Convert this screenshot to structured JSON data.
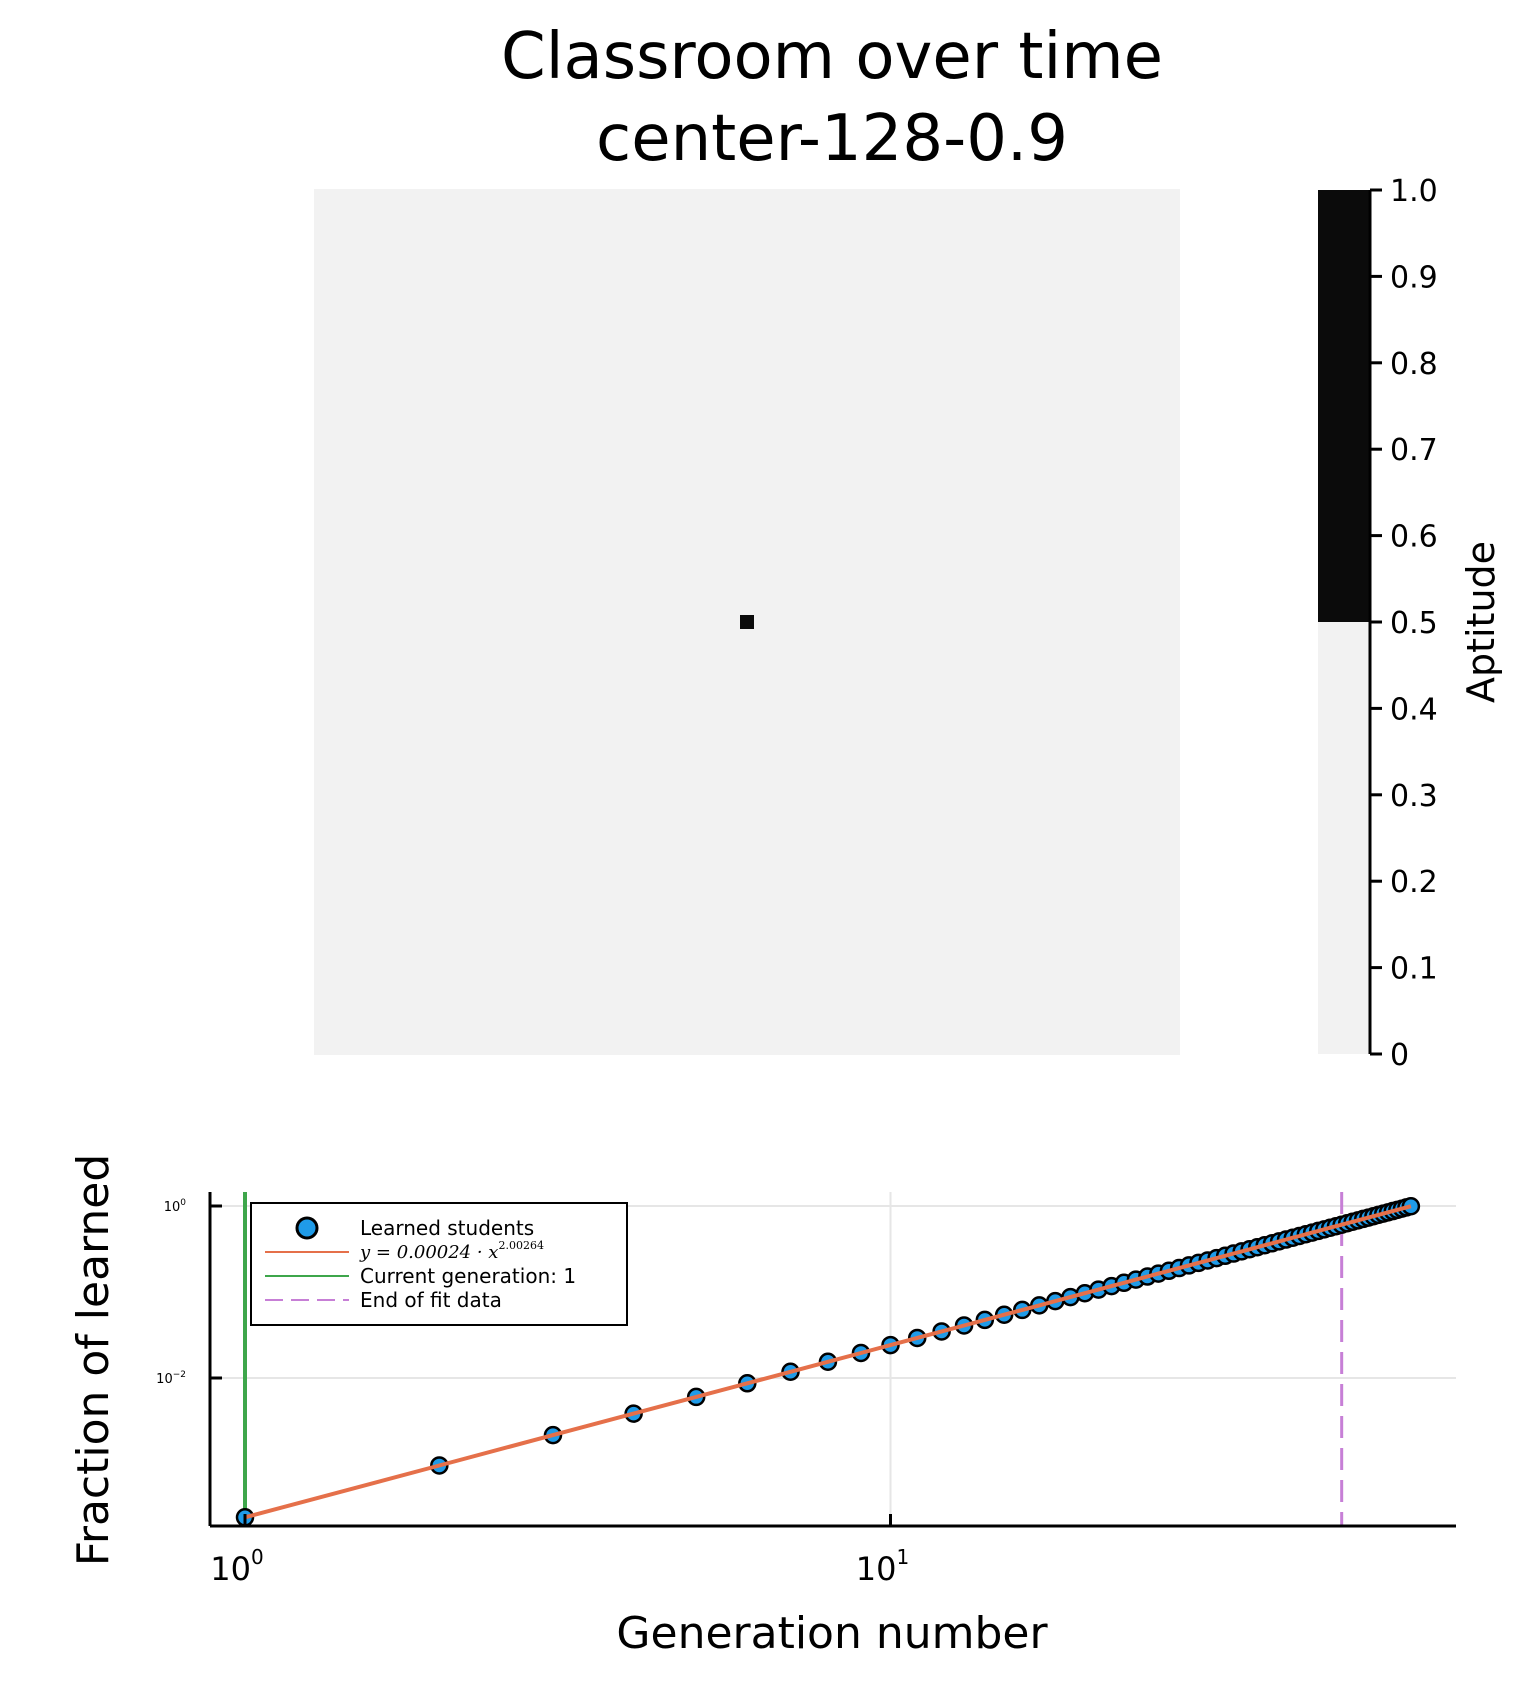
{
  "figure": {
    "title_line1": "Classroom over time",
    "title_line2": "center-128-0.9"
  },
  "heatmap": {
    "background_color": "#f2f2f2",
    "learned_color": "#0b0b0b",
    "grid_size": 128,
    "learned_cell_count": 1
  },
  "colorbar": {
    "label": "Aptitude",
    "ticks": [
      "0",
      "0.1",
      "0.2",
      "0.3",
      "0.4",
      "0.5",
      "0.6",
      "0.7",
      "0.8",
      "0.9",
      "1.0"
    ],
    "low_color": "#f2f2f2",
    "high_color": "#0b0b0b",
    "threshold": 0.5
  },
  "chart_data": {
    "type": "scatter",
    "xlabel": "Generation number",
    "ylabel": "Fraction of learned",
    "xscale": "log",
    "yscale": "log",
    "x_tick_labels": [
      {
        "base": "10",
        "exp": "0"
      },
      {
        "base": "10",
        "exp": "1"
      }
    ],
    "y_tick_labels": [
      {
        "base": "10",
        "exp": "0"
      },
      {
        "base": "10",
        "exp": "−2"
      }
    ],
    "grid": true,
    "legend_position": "top-left",
    "series": [
      {
        "name": "Learned students",
        "kind": "scatter",
        "color": "#1f9be8",
        "x": [
          1,
          2,
          3,
          4,
          5,
          6,
          7,
          8,
          9,
          10,
          11,
          12,
          13,
          14,
          15,
          16,
          17,
          18,
          19,
          20,
          21,
          22,
          23,
          24,
          25,
          26,
          27,
          28,
          29,
          30,
          31,
          32,
          33,
          34,
          35,
          36,
          37,
          38,
          39,
          40,
          41,
          42,
          43,
          44,
          45,
          46,
          47,
          48,
          49,
          50,
          51,
          52,
          53,
          54,
          55,
          56,
          57,
          58,
          59,
          60,
          61,
          62,
          63,
          64
        ]
      },
      {
        "name": "y = 0.00024 · x^2.00264",
        "kind": "fit",
        "color": "#e5704a",
        "a": 0.00024,
        "b": 2.00264
      },
      {
        "name": "Current generation: 1",
        "kind": "vline",
        "color": "#3ea64b",
        "x": 1
      },
      {
        "name": "End of fit data",
        "kind": "vline-dashed",
        "color": "#c77fd6",
        "x": 50
      }
    ],
    "legend": {
      "learned": "Learned students",
      "fit_prefix": "y = 0.00024 · x",
      "fit_exp": "2.00264",
      "current": "Current generation: 1",
      "end_fit": "End of fit data"
    }
  }
}
